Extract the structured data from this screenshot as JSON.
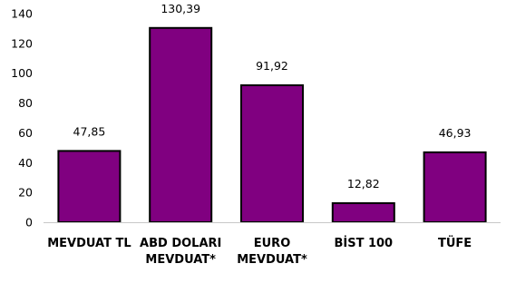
{
  "chart_data": {
    "type": "bar",
    "categories": [
      [
        "MEVDUAT TL"
      ],
      [
        "ABD DOLARI",
        "MEVDUAT*"
      ],
      [
        "EURO",
        "MEVDUAT*"
      ],
      [
        "BİST 100"
      ],
      [
        "TÜFE"
      ]
    ],
    "values": [
      47.85,
      130.39,
      91.92,
      12.82,
      46.93
    ],
    "value_labels": [
      "47,85",
      "130,39",
      "91,92",
      "12,82",
      "46,93"
    ],
    "ylim": [
      0,
      140
    ],
    "yticks": [
      0,
      20,
      40,
      60,
      80,
      100,
      120,
      140
    ],
    "grid": false,
    "legend": "none",
    "bar_color": "#800080",
    "bar_outline_color": "#000000"
  }
}
